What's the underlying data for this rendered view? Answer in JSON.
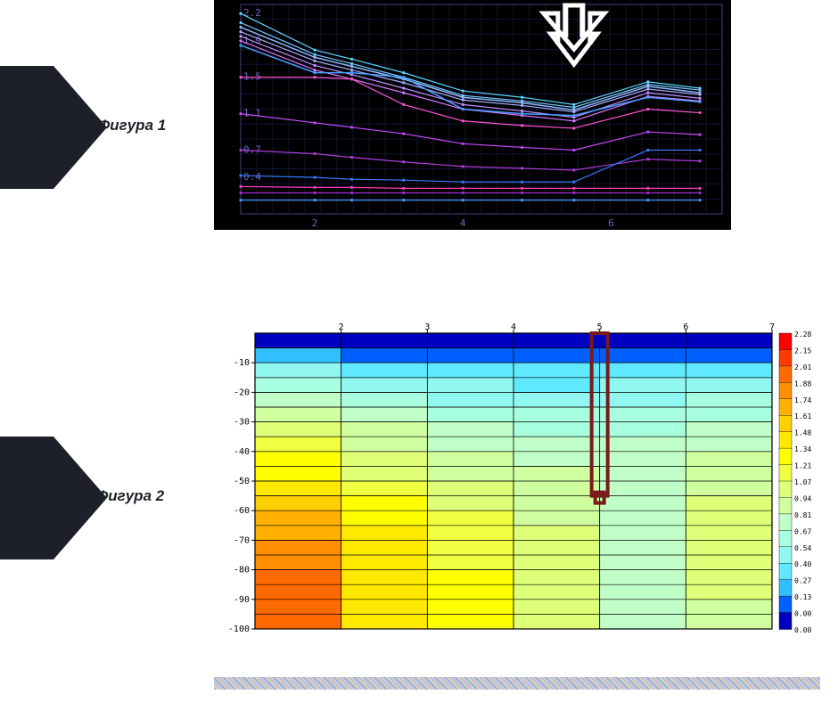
{
  "figure1_label": "Фигура 1",
  "figure2_label": "Фигура 2",
  "chart1": {
    "type": "line",
    "bg": "#000000",
    "grid_color": "#1a1a4a",
    "axis_color": "#404080",
    "tick_color": "#6a6ac0",
    "ytick_labels": [
      "2.2",
      "1.9",
      "1.5",
      "1.1",
      "0.7",
      "0.4"
    ],
    "ytick_vals": [
      2.2,
      1.9,
      1.5,
      1.1,
      0.7,
      0.4
    ],
    "xtick_labels": [
      "2",
      "4",
      "6"
    ],
    "xtick_vals": [
      2,
      4,
      6
    ],
    "xlim": [
      1,
      7.5
    ],
    "ylim": [
      0,
      2.3
    ],
    "series": [
      {
        "color": "#5ad7ff",
        "w": 1.2,
        "y": [
          2.2,
          1.8,
          1.7,
          1.55,
          1.35,
          1.28,
          1.2,
          1.45,
          1.38
        ]
      },
      {
        "color": "#74c8ff",
        "w": 1.2,
        "y": [
          2.1,
          1.75,
          1.65,
          1.5,
          1.3,
          1.24,
          1.17,
          1.42,
          1.36
        ]
      },
      {
        "color": "#8eb9ff",
        "w": 1.5,
        "y": [
          2.05,
          1.72,
          1.62,
          1.48,
          1.28,
          1.22,
          1.14,
          1.4,
          1.33
        ]
      },
      {
        "color": "#a8aaff",
        "w": 1.2,
        "y": [
          2.0,
          1.68,
          1.58,
          1.44,
          1.25,
          1.19,
          1.12,
          1.37,
          1.31
        ]
      },
      {
        "color": "#c090ff",
        "w": 1.2,
        "y": [
          1.95,
          1.63,
          1.53,
          1.38,
          1.2,
          1.13,
          1.06,
          1.33,
          1.27
        ]
      },
      {
        "color": "#d977ff",
        "w": 1.2,
        "y": [
          1.9,
          1.58,
          1.48,
          1.33,
          1.15,
          1.08,
          1.02,
          1.29,
          1.24
        ]
      },
      {
        "color": "#4a9eff",
        "w": 1.5,
        "y": [
          1.85,
          1.55,
          1.55,
          1.5,
          1.15,
          1.1,
          1.08,
          1.28,
          1.23
        ]
      },
      {
        "color": "#ff55d0",
        "w": 1.2,
        "y": [
          1.5,
          1.5,
          1.48,
          1.2,
          1.02,
          0.97,
          0.94,
          1.15,
          1.11
        ]
      },
      {
        "color": "#c84aff",
        "w": 1.2,
        "y": [
          1.1,
          1.0,
          0.95,
          0.88,
          0.77,
          0.73,
          0.7,
          0.9,
          0.87
        ]
      },
      {
        "color": "#b040e0",
        "w": 1.2,
        "y": [
          0.7,
          0.66,
          0.62,
          0.57,
          0.52,
          0.5,
          0.48,
          0.6,
          0.58
        ]
      },
      {
        "color": "#3a7aff",
        "w": 1.2,
        "y": [
          0.42,
          0.4,
          0.38,
          0.37,
          0.35,
          0.35,
          0.35,
          0.7,
          0.7
        ]
      },
      {
        "color": "#ff40c0",
        "w": 1.2,
        "y": [
          0.3,
          0.29,
          0.29,
          0.28,
          0.28,
          0.28,
          0.28,
          0.28,
          0.28
        ]
      },
      {
        "color": "#a030d0",
        "w": 1.2,
        "y": [
          0.23,
          0.23,
          0.23,
          0.23,
          0.23,
          0.23,
          0.23,
          0.23,
          0.23
        ]
      },
      {
        "color": "#4aa0ff",
        "w": 1.2,
        "y": [
          0.15,
          0.15,
          0.15,
          0.15,
          0.15,
          0.15,
          0.15,
          0.15,
          0.15
        ]
      }
    ],
    "xvals": [
      1.0,
      2.0,
      2.5,
      3.2,
      4.0,
      4.8,
      5.5,
      6.5,
      7.2
    ],
    "arrow": {
      "x": 5.5,
      "color": "#ffffff"
    },
    "label_fontsize": 11
  },
  "chart2": {
    "type": "heatmap",
    "bg": "#ffffff",
    "grid_color": "#000000",
    "axis_color": "#000000",
    "xtick_labels": [
      "2",
      "3",
      "4",
      "5",
      "6",
      "7"
    ],
    "xtick_vals": [
      2,
      3,
      4,
      5,
      6,
      7
    ],
    "ytick_labels": [
      "-10",
      "-20",
      "-30",
      "-40",
      "-50",
      "-60",
      "-70",
      "-80",
      "-90",
      "-100"
    ],
    "ytick_vals": [
      -10,
      -20,
      -30,
      -40,
      -50,
      -60,
      -70,
      -80,
      -90,
      -100
    ],
    "xlim": [
      1,
      7
    ],
    "ylim": [
      -100,
      0
    ],
    "grid_yvals": [
      0,
      -5,
      -10,
      -15,
      -20,
      -25,
      -30,
      -35,
      -40,
      -45,
      -50,
      -55,
      -60,
      -65,
      -70,
      -75,
      -80,
      -85,
      -90,
      -95,
      -100
    ],
    "label_fontsize": 10,
    "scale_labels": [
      "2.28",
      "2.15",
      "2.01",
      "1.88",
      "1.74",
      "1.61",
      "1.48",
      "1.34",
      "1.21",
      "1.07",
      "0.94",
      "0.81",
      "0.67",
      "0.54",
      "0.40",
      "0.27",
      "0.13",
      "0.00"
    ],
    "scale_colors": [
      "#ff0000",
      "#ff3a00",
      "#ff6a00",
      "#ff8f00",
      "#ffb000",
      "#ffd000",
      "#ffe900",
      "#ffff00",
      "#f0ff40",
      "#e0ff78",
      "#d0ffa0",
      "#c0ffc8",
      "#a8ffe0",
      "#90f8f0",
      "#60e8ff",
      "#30c0ff",
      "#0060ff",
      "#0000c0"
    ],
    "grid_xvals": [
      1,
      2,
      3,
      4,
      5,
      6,
      7
    ],
    "cells_x": [
      1,
      2,
      3,
      4,
      5,
      6
    ],
    "cells_y": [
      0,
      -5,
      -10,
      -15,
      -20,
      -25,
      -30,
      -35,
      -40,
      -45,
      -50,
      -55,
      -60,
      -65,
      -70,
      -75,
      -80,
      -85,
      -90,
      -95
    ],
    "values": [
      [
        0.05,
        0.05,
        0.05,
        0.05,
        0.05,
        0.05
      ],
      [
        0.3,
        0.25,
        0.22,
        0.2,
        0.18,
        0.18
      ],
      [
        0.55,
        0.48,
        0.44,
        0.4,
        0.46,
        0.5
      ],
      [
        0.72,
        0.62,
        0.56,
        0.52,
        0.56,
        0.62
      ],
      [
        0.85,
        0.74,
        0.66,
        0.62,
        0.66,
        0.72
      ],
      [
        0.98,
        0.84,
        0.76,
        0.72,
        0.74,
        0.8
      ],
      [
        1.1,
        0.94,
        0.84,
        0.8,
        0.8,
        0.86
      ],
      [
        1.22,
        1.02,
        0.92,
        0.86,
        0.84,
        0.92
      ],
      [
        1.34,
        1.12,
        0.98,
        0.92,
        0.88,
        0.98
      ],
      [
        1.46,
        1.2,
        1.06,
        0.96,
        0.9,
        1.02
      ],
      [
        1.58,
        1.28,
        1.12,
        1.0,
        0.92,
        1.06
      ],
      [
        1.68,
        1.36,
        1.18,
        1.04,
        0.92,
        1.1
      ],
      [
        1.78,
        1.42,
        1.22,
        1.06,
        0.92,
        1.12
      ],
      [
        1.86,
        1.48,
        1.26,
        1.08,
        0.92,
        1.14
      ],
      [
        1.94,
        1.52,
        1.3,
        1.1,
        0.92,
        1.14
      ],
      [
        2.0,
        1.56,
        1.32,
        1.1,
        0.92,
        1.12
      ],
      [
        2.06,
        1.58,
        1.34,
        1.1,
        0.92,
        1.1
      ],
      [
        2.1,
        1.6,
        1.34,
        1.1,
        0.92,
        1.08
      ],
      [
        2.12,
        1.6,
        1.34,
        1.1,
        0.92,
        1.06
      ],
      [
        2.14,
        1.6,
        1.34,
        1.1,
        0.92,
        1.04
      ]
    ],
    "marker": {
      "x": 5,
      "y_top": 0,
      "y_bot": -55,
      "color": "#7a1a1a",
      "width": 4
    }
  }
}
